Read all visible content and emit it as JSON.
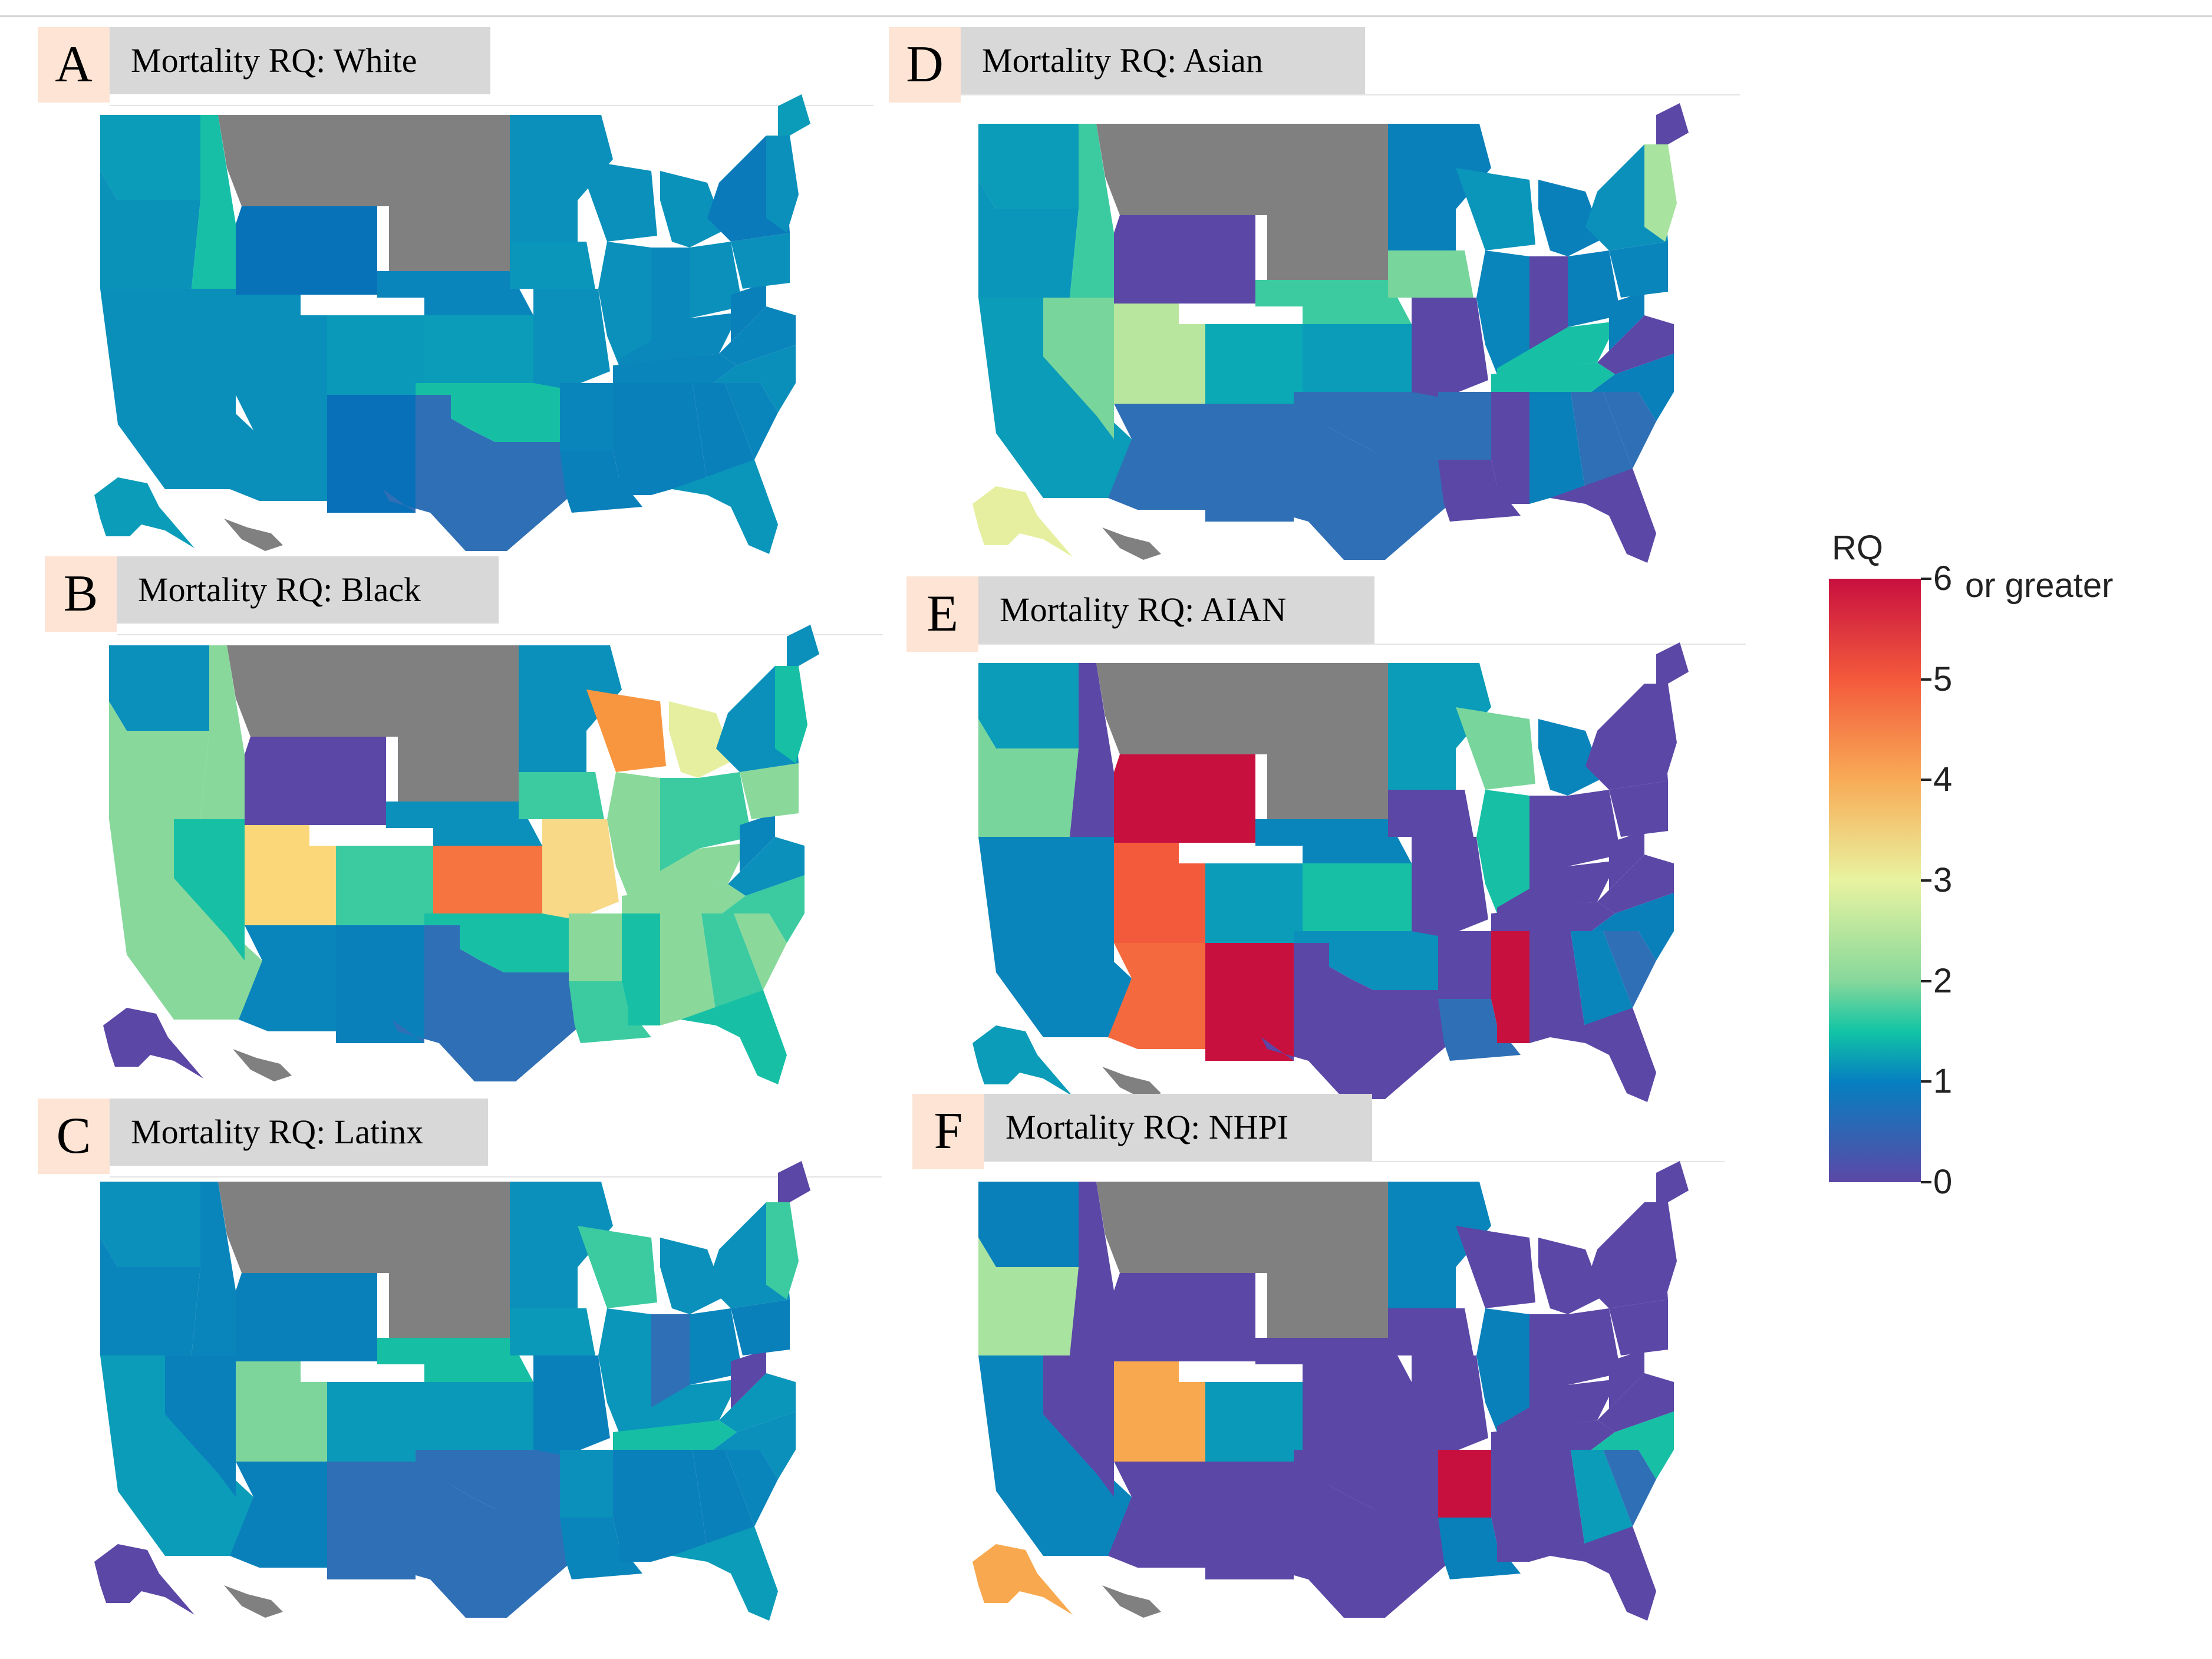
{
  "figure": {
    "panels": [
      {
        "letter": "A",
        "title": "Mortality RQ: White",
        "race": "White",
        "state_fills": {
          "wa": "#0a9cb8",
          "or": "#0a92b8",
          "ca": "#0a8fbb",
          "id": "#17bfa6",
          "nv": "#0a8fbb",
          "mt": "#808080",
          "wy": "#0872b8",
          "ut": "#0a8fbb",
          "co": "#0a99b8",
          "az": "#0a8fbb",
          "nm": "#0870b8",
          "nd": "#808080",
          "sd": "#808080",
          "ne": "#0a85bb",
          "ks": "#0a9cb8",
          "ok": "#16bfa3",
          "tx": "#2f6fb5",
          "mn": "#0a90bb",
          "ia": "#0a95bb",
          "mo": "#0a90bb",
          "ar": "#0a85bb",
          "la": "#0a80bb",
          "wi": "#0a90bb",
          "il": "#0a90bb",
          "ms": "#0a80bb",
          "mi": "#0a92bb",
          "in": "#0a88bb",
          "oh": "#0a90bb",
          "ky": "#0a88bb",
          "tn": "#0a85bb",
          "al": "#0a80bb",
          "ga": "#0a80bb",
          "fl": "#0a95bb",
          "sc": "#0a85bb",
          "nc": "#0a8fbb",
          "va": "#0a85bb",
          "wv": "#0a80bb",
          "pa": "#0a90bb",
          "ny": "#0a7abb",
          "ne_region": "#0a90bb",
          "me": "#0a9cb8",
          "ak": "#0a9cb8",
          "hi": "#808080"
        }
      },
      {
        "letter": "B",
        "title": "Mortality RQ: Black",
        "race": "Black",
        "state_fills": {
          "wa": "#0a90bb",
          "or": "#88d89c",
          "ca": "#88d89c",
          "id": "#88d89c",
          "nv": "#17c0a5",
          "mt": "#808080",
          "wy": "#5b47a6",
          "ut": "#fbd77a",
          "co": "#3ccba0",
          "az": "#0a85bb",
          "nm": "#0a80bb",
          "nd": "#808080",
          "sd": "#808080",
          "ne": "#0a90bb",
          "ks": "#f6743f",
          "ok": "#17c0a5",
          "tx": "#2f6fb5",
          "mn": "#0a90bb",
          "ia": "#3ccba0",
          "mo": "#f8d987",
          "ar": "#8ad99b",
          "la": "#3ccba0",
          "wi": "#f8963f",
          "il": "#8ad99b",
          "ms": "#17c0a5",
          "mi": "#e6efa0",
          "in": "#3ccba0",
          "oh": "#3ccba0",
          "ky": "#8ad99b",
          "tn": "#8ad99b",
          "al": "#8ad99b",
          "ga": "#3ccba0",
          "fl": "#17c0a5",
          "sc": "#8ad99b",
          "nc": "#3ccba0",
          "va": "#0a90bb",
          "wv": "#0a85bb",
          "pa": "#8ad99b",
          "ny": "#0a90bb",
          "ne_region": "#17c0a5",
          "me": "#0a90bb",
          "ak": "#5b47a6",
          "hi": "#808080"
        }
      },
      {
        "letter": "C",
        "title": "Mortality RQ: Latinx",
        "race": "Latinx",
        "state_fills": {
          "wa": "#0a90bb",
          "or": "#0a85bb",
          "ca": "#0a9cb8",
          "id": "#0a85bb",
          "nv": "#0a80bb",
          "mt": "#808080",
          "wy": "#0a80bb",
          "ut": "#7dd59c",
          "co": "#0a99b8",
          "az": "#0a80bb",
          "nm": "#2f6fb5",
          "nd": "#808080",
          "sd": "#808080",
          "ne": "#16bfa3",
          "ks": "#0a99b8",
          "ok": "#2f6fb5",
          "tx": "#2f6fb5",
          "mn": "#0a90bb",
          "ia": "#0a99b8",
          "mo": "#0a80bb",
          "ar": "#0a90bb",
          "la": "#0a85bb",
          "wi": "#3ccba0",
          "il": "#0a95bb",
          "ms": "#0a80bb",
          "mi": "#0a90bb",
          "in": "#2f6fb5",
          "oh": "#0a85bb",
          "ky": "#0a95bb",
          "tn": "#16bfa3",
          "al": "#0a80bb",
          "ga": "#0a80bb",
          "fl": "#0a9cb8",
          "sc": "#0a85bb",
          "nc": "#0a90bb",
          "va": "#0a95bb",
          "wv": "#5b47a6",
          "pa": "#0a80bb",
          "ny": "#0a90bb",
          "ne_region": "#3ccba0",
          "me": "#5b47a6",
          "ak": "#5b47a6",
          "hi": "#808080"
        }
      },
      {
        "letter": "D",
        "title": "Mortality RQ: Asian",
        "race": "Asian",
        "state_fills": {
          "wa": "#0a9cb8",
          "or": "#0a95bb",
          "ca": "#0a9cb8",
          "id": "#3ccba0",
          "nv": "#78d59c",
          "mt": "#808080",
          "wy": "#5b47a6",
          "ut": "#b9e69e",
          "co": "#0aa9b5",
          "az": "#2f6fb5",
          "nm": "#2f6fb5",
          "nd": "#808080",
          "sd": "#808080",
          "ne": "#3ccba0",
          "ks": "#0a9cb8",
          "ok": "#2f6fb5",
          "tx": "#2f6fb5",
          "mn": "#0a80bb",
          "ia": "#78d59c",
          "mo": "#5b47a6",
          "ar": "#2f6fb5",
          "la": "#5b47a6",
          "wi": "#0a95bb",
          "il": "#0a85bb",
          "ms": "#5b47a6",
          "mi": "#0a80bb",
          "in": "#5b47a6",
          "oh": "#0a80bb",
          "ky": "#17c0a5",
          "tn": "#17c0a5",
          "al": "#0a80bb",
          "ga": "#2f6fb5",
          "fl": "#5b47a6",
          "sc": "#2f6fb5",
          "nc": "#0a80bb",
          "va": "#5b47a6",
          "wv": "#0a80bb",
          "pa": "#0a85bb",
          "ny": "#0a90bb",
          "ne_region": "#a8e3a0",
          "me": "#5b47a6",
          "ak": "#e6efa0",
          "hi": "#808080"
        }
      },
      {
        "letter": "E",
        "title": "Mortality RQ: AIAN",
        "race": "AIAN",
        "state_fills": {
          "wa": "#0a9cb8",
          "or": "#78d59c",
          "ca": "#0a85bb",
          "id": "#5b47a6",
          "nv": "#0a85bb",
          "mt": "#808080",
          "wy": "#c8103f",
          "ut": "#f35a3c",
          "co": "#0a9cb8",
          "az": "#f46a3e",
          "nm": "#c8103f",
          "nd": "#808080",
          "sd": "#808080",
          "ne": "#0a85bb",
          "ks": "#17c0a5",
          "ok": "#0a90bb",
          "tx": "#5b47a6",
          "mn": "#0a9cb8",
          "ia": "#5b47a6",
          "mo": "#5b47a6",
          "ar": "#5b47a6",
          "la": "#2f6fb5",
          "wi": "#78d59c",
          "il": "#17c0a5",
          "ms": "#c8103f",
          "mi": "#0a85bb",
          "in": "#5b47a6",
          "oh": "#5b47a6",
          "ky": "#5b47a6",
          "tn": "#5b47a6",
          "al": "#5b47a6",
          "ga": "#0a85bb",
          "fl": "#5b47a6",
          "sc": "#2f6fb5",
          "nc": "#0a80bb",
          "va": "#5b47a6",
          "wv": "#5b47a6",
          "pa": "#5b47a6",
          "ny": "#5b47a6",
          "ne_region": "#5b47a6",
          "me": "#5b47a6",
          "ak": "#0a9cb8",
          "hi": "#808080"
        }
      },
      {
        "letter": "F",
        "title": "Mortality RQ: NHPI",
        "race": "NHPI",
        "state_fills": {
          "wa": "#0a80bb",
          "or": "#a8e3a0",
          "ca": "#0a85bb",
          "id": "#5b47a6",
          "nv": "#5b47a6",
          "mt": "#808080",
          "wy": "#5b47a6",
          "ut": "#f8a94f",
          "co": "#0a99b8",
          "az": "#5b47a6",
          "nm": "#5b47a6",
          "nd": "#808080",
          "sd": "#808080",
          "ne": "#5b47a6",
          "ks": "#5b47a6",
          "ok": "#5b47a6",
          "tx": "#5b47a6",
          "mn": "#0a85bb",
          "ia": "#5b47a6",
          "mo": "#5b47a6",
          "ar": "#c8103f",
          "la": "#0a80bb",
          "wi": "#5b47a6",
          "il": "#0a80bb",
          "ms": "#5b47a6",
          "mi": "#5b47a6",
          "in": "#5b47a6",
          "oh": "#5b47a6",
          "ky": "#5b47a6",
          "tn": "#5b47a6",
          "al": "#5b47a6",
          "ga": "#0a9cb8",
          "fl": "#5b47a6",
          "sc": "#2f6fb5",
          "nc": "#17c0a5",
          "va": "#5b47a6",
          "wv": "#5b47a6",
          "pa": "#5b47a6",
          "ny": "#5b47a6",
          "ne_region": "#5b47a6",
          "me": "#5b47a6",
          "ak": "#f8a94f",
          "hi": "#808080"
        }
      }
    ],
    "legend": {
      "title": "RQ",
      "ticks": [
        "0",
        "1",
        "2",
        "3",
        "4",
        "5",
        "6"
      ],
      "max_suffix": "or greater",
      "colors": [
        "#5c48a6",
        "#0580c0",
        "#12c4a5",
        "#86d89b",
        "#e8f3a0",
        "#f8ab56",
        "#f35a3c",
        "#c8103f"
      ]
    }
  }
}
